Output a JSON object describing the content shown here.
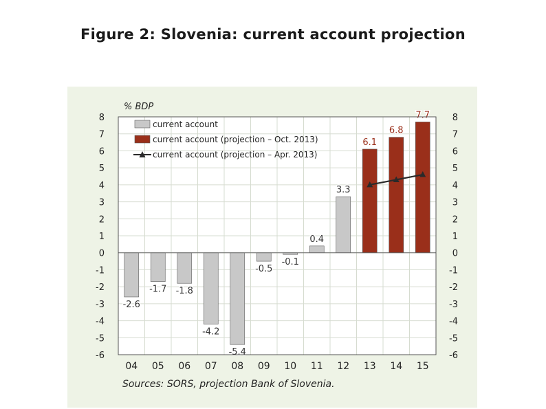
{
  "page": {
    "title": "Figure 2: Slovenia: current account projection",
    "source": "Sources: SORS, projection Bank of Slovenia."
  },
  "chart_data": {
    "type": "bar",
    "title": "Figure 2: Slovenia: current account projection",
    "ylabel": "% BDP",
    "xlabel": "",
    "ylim": [
      -6,
      8
    ],
    "yticks": [
      -6,
      -5,
      -4,
      -3,
      -2,
      -1,
      0,
      1,
      2,
      3,
      4,
      5,
      6,
      7,
      8
    ],
    "categories": [
      "04",
      "05",
      "06",
      "07",
      "08",
      "09",
      "10",
      "11",
      "12",
      "13",
      "14",
      "15"
    ],
    "grid": true,
    "legend_position": "top-left",
    "series": [
      {
        "name": "current account",
        "kind": "bar",
        "color": "#c8c8c8",
        "label_color": "#333333",
        "values": [
          -2.6,
          -1.7,
          -1.8,
          -4.2,
          -5.4,
          -0.5,
          -0.1,
          0.4,
          3.3,
          null,
          null,
          null
        ],
        "labels": [
          "-2.6",
          "-1.7",
          "-1.8",
          "-4.2",
          "-5.4",
          "-0.5",
          "-0.1",
          "0.4",
          "3.3",
          null,
          null,
          null
        ]
      },
      {
        "name": "current account (projection – Oct. 2013)",
        "kind": "bar",
        "color": "#9a2f1a",
        "label_color": "#9a2f1a",
        "values": [
          null,
          null,
          null,
          null,
          null,
          null,
          null,
          null,
          null,
          6.1,
          6.8,
          7.7
        ],
        "labels": [
          null,
          null,
          null,
          null,
          null,
          null,
          null,
          null,
          null,
          "6.1",
          "6.8",
          "7.7"
        ]
      },
      {
        "name": "current account (projection – Apr. 2013)",
        "kind": "line",
        "color": "#2a2a2a",
        "values": [
          null,
          null,
          null,
          null,
          null,
          null,
          null,
          null,
          null,
          4.0,
          4.3,
          4.6
        ]
      }
    ]
  }
}
